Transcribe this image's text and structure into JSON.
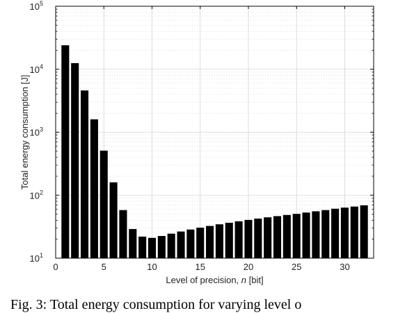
{
  "chart_data": {
    "type": "bar",
    "xlabel_prefix": "Level of precision, ",
    "xlabel_var": "n",
    "xlabel_suffix": " [bit]",
    "ylabel": "Total energy consumption [J]",
    "yscale": "log",
    "ylim": [
      10,
      100000
    ],
    "xlim": [
      0,
      33
    ],
    "grid": true,
    "bar_color": "#000000",
    "x_ticks": [
      0,
      5,
      10,
      15,
      20,
      25,
      30
    ],
    "y_ticks": [
      {
        "value": 10,
        "base": "10",
        "exp": "1"
      },
      {
        "value": 100,
        "base": "10",
        "exp": "2"
      },
      {
        "value": 1000,
        "base": "10",
        "exp": "3"
      },
      {
        "value": 10000,
        "base": "10",
        "exp": "4"
      },
      {
        "value": 100000,
        "base": "10",
        "exp": "5"
      }
    ],
    "x": [
      1,
      2,
      3,
      4,
      5,
      6,
      7,
      8,
      9,
      10,
      11,
      12,
      13,
      14,
      15,
      16,
      17,
      18,
      19,
      20,
      21,
      22,
      23,
      24,
      25,
      26,
      27,
      28,
      29,
      30,
      31,
      32
    ],
    "values": [
      24000,
      12500,
      4600,
      1600,
      510,
      160,
      58,
      29,
      22,
      21,
      22.5,
      24.5,
      26.5,
      28.5,
      30.5,
      32.5,
      34.5,
      36.5,
      38.5,
      40.5,
      42.5,
      44.5,
      46.5,
      48.5,
      50.5,
      53,
      55.5,
      58,
      61,
      63.5,
      66,
      69
    ]
  },
  "caption": "Fig. 3: Total energy consumption for varying level o"
}
